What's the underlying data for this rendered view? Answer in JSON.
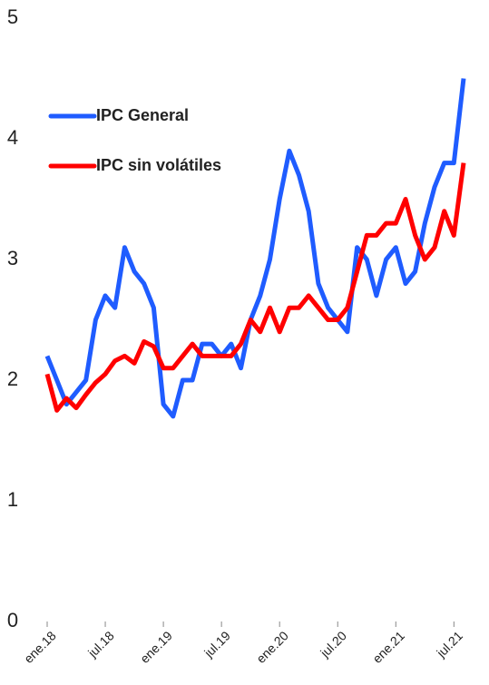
{
  "chart_data": {
    "type": "line",
    "categories": [
      "ene.18",
      null,
      null,
      null,
      null,
      null,
      "jul.18",
      null,
      null,
      null,
      null,
      null,
      "ene.19",
      null,
      null,
      null,
      null,
      null,
      "jul.19",
      null,
      null,
      null,
      null,
      null,
      "ene.20",
      null,
      null,
      null,
      null,
      null,
      "jul.20",
      null,
      null,
      null,
      null,
      null,
      "ene.21",
      null,
      null,
      null,
      null,
      null,
      "jul.21",
      null
    ],
    "series": [
      {
        "name": "IPC General",
        "color": "#1f5cff",
        "values": [
          2.2,
          2.0,
          1.8,
          1.9,
          2.0,
          2.5,
          2.7,
          2.6,
          3.1,
          2.9,
          2.8,
          2.6,
          1.8,
          1.7,
          2.0,
          2.0,
          2.3,
          2.3,
          2.2,
          2.3,
          2.1,
          2.5,
          2.7,
          3.0,
          3.5,
          3.9,
          3.7,
          3.4,
          2.8,
          2.6,
          2.5,
          2.4,
          3.1,
          3.0,
          2.7,
          3.0,
          3.1,
          2.8,
          2.9,
          3.3,
          3.6,
          3.8,
          3.8,
          4.5
        ]
      },
      {
        "name": "IPC sin volátiles",
        "color": "#ff0000",
        "values": [
          2.05,
          1.75,
          1.85,
          1.77,
          1.88,
          1.98,
          2.05,
          2.16,
          2.2,
          2.14,
          2.32,
          2.28,
          2.1,
          2.1,
          2.2,
          2.3,
          2.2,
          2.2,
          2.2,
          2.2,
          2.3,
          2.5,
          2.4,
          2.6,
          2.4,
          2.6,
          2.6,
          2.7,
          2.6,
          2.5,
          2.5,
          2.6,
          2.9,
          3.2,
          3.2,
          3.3,
          3.3,
          3.5,
          3.2,
          3.0,
          3.1,
          3.4,
          3.2,
          3.8
        ]
      }
    ],
    "ylim": [
      0,
      5
    ],
    "yticks": [
      0,
      1,
      2,
      3,
      4,
      5
    ],
    "grid": false,
    "legend": "upper-left"
  }
}
